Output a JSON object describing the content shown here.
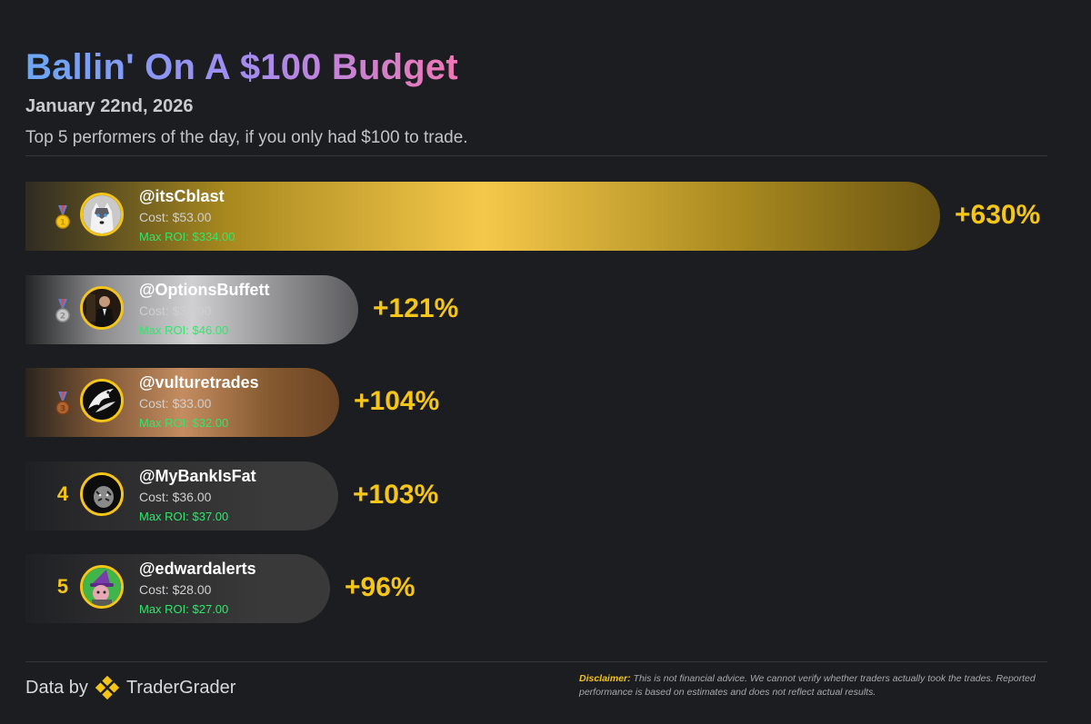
{
  "header": {
    "title": "Ballin' On A $100 Budget",
    "date": "January 22nd, 2026",
    "subtitle": "Top 5 performers of the day, if you only had $100 to trade."
  },
  "chart_data": {
    "type": "bar",
    "orientation": "horizontal",
    "title": "Ballin' On A $100 Budget",
    "categories": [
      "@itsCblast",
      "@OptionsBuffett",
      "@vulturetrades",
      "@MyBankIsFat",
      "@edwardalerts"
    ],
    "values": [
      630,
      121,
      104,
      103,
      96
    ],
    "value_unit": "%",
    "rows": [
      {
        "rank": 1,
        "rank_style": "gold",
        "handle": "@itsCblast",
        "cost": "Cost: $53.00",
        "max_roi": "Max ROI: $334.00",
        "pct": 630,
        "pct_label": "+630%",
        "avatar": "husky-dog-avatar",
        "colors": [
          "#2e2b22",
          "#a8891f",
          "#f5c84a",
          "#a8891f",
          "#6b5512"
        ]
      },
      {
        "rank": 2,
        "rank_style": "silver",
        "handle": "@OptionsBuffett",
        "cost": "Cost: $38.00",
        "max_roi": "Max ROI: $46.00",
        "pct": 121,
        "pct_label": "+121%",
        "avatar": "man-in-suit-avatar",
        "colors": [
          "#232426",
          "#8a8a8c",
          "#d0d0d2",
          "#8d8d8f",
          "#5a5a5d"
        ]
      },
      {
        "rank": 3,
        "rank_style": "bronze",
        "handle": "@vulturetrades",
        "cost": "Cost: $33.00",
        "max_roi": "Max ROI: $32.00",
        "pct": 104,
        "pct_label": "+104%",
        "avatar": "eagle-avatar",
        "colors": [
          "#2a241f",
          "#7b5534",
          "#c48c60",
          "#84592f",
          "#6b4424"
        ]
      },
      {
        "rank": 4,
        "rank_style": "number",
        "rank_label": "4",
        "handle": "@MyBankIsFat",
        "cost": "Cost: $36.00",
        "max_roi": "Max ROI: $37.00",
        "pct": 103,
        "pct_label": "+103%",
        "avatar": "tiger-avatar",
        "colors": [
          "#1f2023",
          "#2b2b2d",
          "#323233",
          "#3a3a3b",
          "#3a3a3b"
        ]
      },
      {
        "rank": 5,
        "rank_style": "number",
        "rank_label": "5",
        "handle": "@edwardalerts",
        "cost": "Cost: $28.00",
        "max_roi": "Max ROI: $27.00",
        "pct": 96,
        "pct_label": "+96%",
        "avatar": "wizard-avatar",
        "colors": [
          "#1f2023",
          "#2a2a2c",
          "#313132",
          "#39393a",
          "#39393a"
        ]
      }
    ]
  },
  "footer": {
    "data_by": "Data by",
    "brand": "TraderGrader",
    "disclaimer_label": "Disclaimer:",
    "disclaimer_text": "This is not financial advice. We cannot verify whether traders actually took the trades. Reported performance is based on estimates and does not reflect actual results."
  },
  "colors": {
    "background": "#1c1d21",
    "accent_yellow": "#f5c518",
    "roi_green": "#2ee86a"
  }
}
